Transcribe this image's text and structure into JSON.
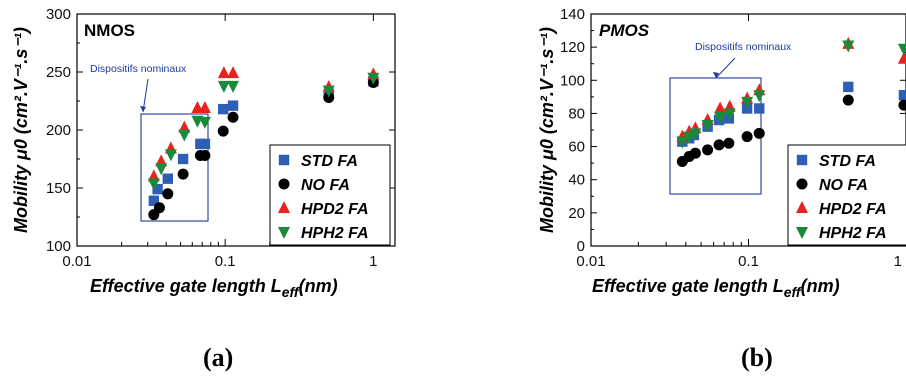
{
  "chart_data": [
    {
      "type": "scatter",
      "panel_label": "NMOS",
      "caption": "(a)",
      "annotation": "Dispositifs nominaux",
      "xlabel": "Effective gate length L",
      "xlabel_sub": "eff",
      "xlabel_unit": "(nm)",
      "ylabel": "Mobility μ0 (cm².V⁻¹.s⁻¹)",
      "xscale": "log",
      "xlim": [
        0.01,
        1.4
      ],
      "ylim": [
        100,
        300
      ],
      "xticks": [
        "0.01",
        "0.1",
        "1"
      ],
      "yticks": [
        "100",
        "150",
        "200",
        "250",
        "300"
      ],
      "legend_position": "bottom-right",
      "series": [
        {
          "name": "STD FA",
          "marker": "square",
          "color": "#2e5fb5",
          "points": [
            [
              0.033,
              139
            ],
            [
              0.035,
              149
            ],
            [
              0.041,
              158
            ],
            [
              0.052,
              175
            ],
            [
              0.068,
              188
            ],
            [
              0.073,
              188
            ],
            [
              0.097,
              218
            ],
            [
              0.113,
              221
            ],
            [
              0.5,
              231
            ],
            [
              1.0,
              242
            ]
          ]
        },
        {
          "name": "NO FA",
          "marker": "circle",
          "color": "#000000",
          "points": [
            [
              0.033,
              127
            ],
            [
              0.036,
              133
            ],
            [
              0.041,
              145
            ],
            [
              0.052,
              162
            ],
            [
              0.068,
              178
            ],
            [
              0.073,
              178
            ],
            [
              0.097,
              199
            ],
            [
              0.113,
              211
            ],
            [
              0.5,
              228
            ],
            [
              1.0,
              241
            ]
          ]
        },
        {
          "name": "HPD2 FA",
          "marker": "triangle-up",
          "color": "#e8221f",
          "points": [
            [
              0.033,
              160
            ],
            [
              0.037,
              173
            ],
            [
              0.043,
              184
            ],
            [
              0.053,
              202
            ],
            [
              0.065,
              219
            ],
            [
              0.073,
              219
            ],
            [
              0.098,
              249
            ],
            [
              0.113,
              249
            ],
            [
              0.5,
              237
            ],
            [
              1.0,
              248
            ]
          ]
        },
        {
          "name": "HPH2 FA",
          "marker": "triangle-down",
          "color": "#1a8a3a",
          "points": [
            [
              0.033,
              154
            ],
            [
              0.037,
              167
            ],
            [
              0.043,
              179
            ],
            [
              0.053,
              196
            ],
            [
              0.065,
              208
            ],
            [
              0.073,
              207
            ],
            [
              0.098,
              238
            ],
            [
              0.113,
              238
            ],
            [
              0.5,
              234
            ],
            [
              1.0,
              245
            ]
          ]
        }
      ]
    },
    {
      "type": "scatter",
      "panel_label": "PMOS",
      "caption": "(b)",
      "annotation": "Dispositifs nominaux",
      "xlabel": "Effective gate length L",
      "xlabel_sub": "eff",
      "xlabel_unit": "(nm)",
      "ylabel": "Mobility μ0 (cm².V⁻¹.s⁻¹)",
      "xscale": "log",
      "xlim": [
        0.01,
        1.0
      ],
      "ylim": [
        0,
        140
      ],
      "xticks": [
        "0.01",
        "0.1",
        "1"
      ],
      "yticks": [
        "0",
        "20",
        "40",
        "60",
        "80",
        "100",
        "120",
        "140"
      ],
      "legend_position": "bottom-right",
      "series": [
        {
          "name": "STD FA",
          "marker": "square",
          "color": "#2e5fb5",
          "points": [
            [
              0.038,
              63
            ],
            [
              0.042,
              65
            ],
            [
              0.045,
              67
            ],
            [
              0.055,
              72
            ],
            [
              0.065,
              76
            ],
            [
              0.075,
              77
            ],
            [
              0.098,
              83
            ],
            [
              0.117,
              83
            ],
            [
              0.43,
              96
            ],
            [
              0.97,
              91
            ]
          ]
        },
        {
          "name": "NO FA",
          "marker": "circle",
          "color": "#000000",
          "points": [
            [
              0.038,
              51
            ],
            [
              0.042,
              54
            ],
            [
              0.046,
              56
            ],
            [
              0.055,
              58
            ],
            [
              0.065,
              61
            ],
            [
              0.075,
              62
            ],
            [
              0.098,
              66
            ],
            [
              0.117,
              68
            ],
            [
              0.43,
              88
            ],
            [
              0.97,
              85
            ]
          ]
        },
        {
          "name": "HPD2 FA",
          "marker": "triangle-up",
          "color": "#e8221f",
          "points": [
            [
              0.038,
              66
            ],
            [
              0.042,
              69
            ],
            [
              0.046,
              71
            ],
            [
              0.055,
              76
            ],
            [
              0.066,
              83
            ],
            [
              0.076,
              84
            ],
            [
              0.098,
              89
            ],
            [
              0.117,
              94
            ],
            [
              0.43,
              122
            ],
            [
              0.97,
              113
            ]
          ]
        },
        {
          "name": "HPH2 FA",
          "marker": "triangle-down",
          "color": "#1a8a3a",
          "points": [
            [
              0.038,
              63
            ],
            [
              0.042,
              66
            ],
            [
              0.046,
              68
            ],
            [
              0.055,
              73
            ],
            [
              0.066,
              78
            ],
            [
              0.076,
              80
            ],
            [
              0.098,
              87
            ],
            [
              0.117,
              91
            ],
            [
              0.43,
              121
            ],
            [
              0.97,
              119
            ]
          ]
        }
      ]
    }
  ]
}
